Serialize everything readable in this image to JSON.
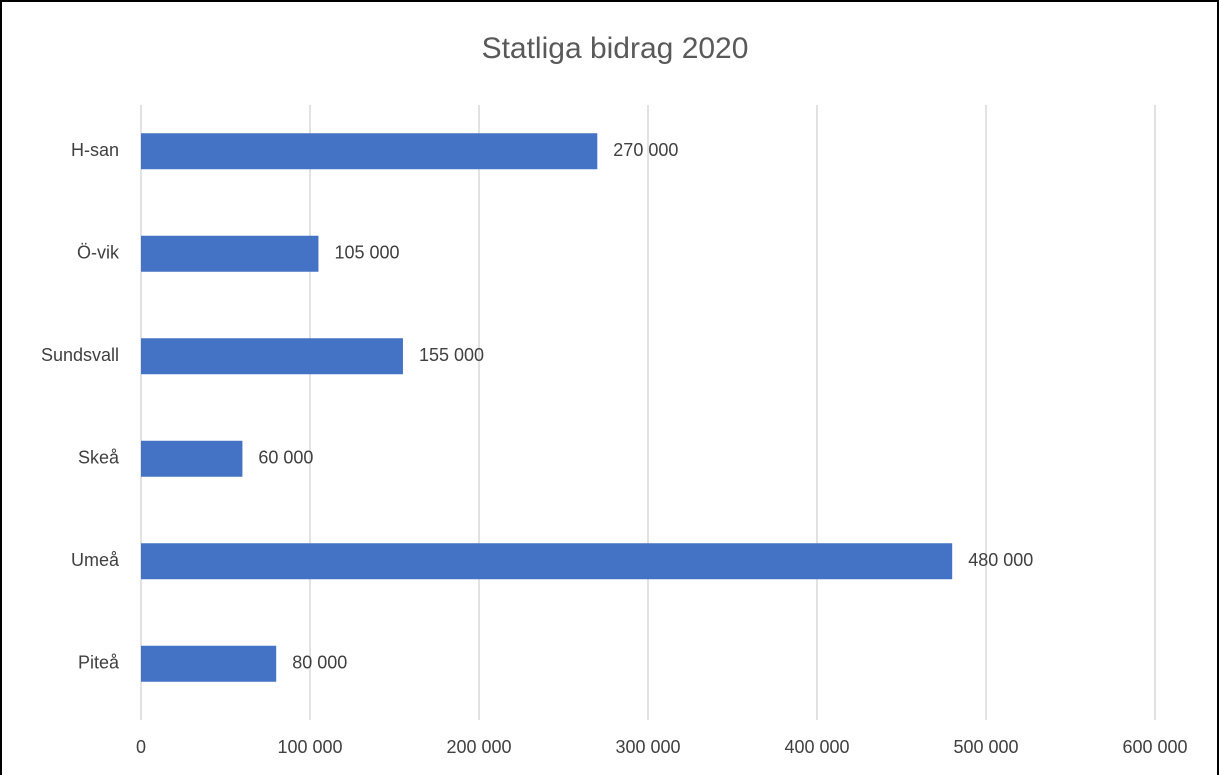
{
  "chart_data": {
    "type": "bar",
    "orientation": "horizontal",
    "title": "Statliga bidrag 2020",
    "categories": [
      "H-san",
      "Ö-vik",
      "Sundsvall",
      "Skeå",
      "Umeå",
      "Piteå"
    ],
    "values": [
      270000,
      105000,
      155000,
      60000,
      480000,
      80000
    ],
    "value_labels": [
      "270 000",
      "105 000",
      "155 000",
      "60 000",
      "480 000",
      "80 000"
    ],
    "color": "#4472c4",
    "xlim": [
      0,
      600000
    ],
    "xticks": [
      0,
      {
        "value": 100000,
        "label": "100 000"
      },
      {
        "value": 200000,
        "label": "200 000"
      },
      {
        "value": 300000,
        "label": "300 000"
      },
      {
        "value": 400000,
        "label": "400 000"
      },
      {
        "value": 500000,
        "label": "500 000"
      },
      {
        "value": 600000,
        "label": "600 000"
      }
    ],
    "grid": true
  }
}
